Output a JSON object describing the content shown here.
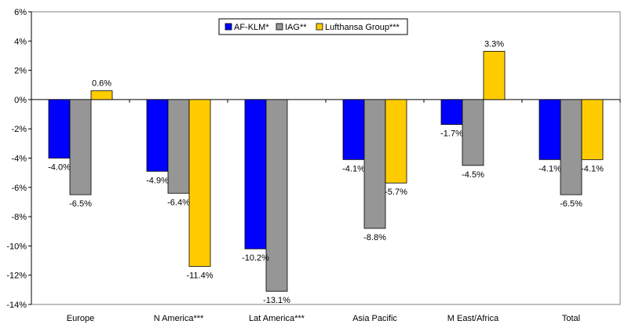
{
  "chart_data": {
    "type": "bar",
    "categories": [
      "Europe",
      "N America***",
      "Lat America***",
      "Asia Pacific",
      "M East/Africa",
      "Total"
    ],
    "series": [
      {
        "name": "AF-KLM*",
        "color": "#0000ff",
        "values": [
          -4.0,
          -4.9,
          -10.2,
          -4.1,
          -1.7,
          -4.1
        ],
        "labels": [
          "-4.0%",
          "-4.9%",
          "-10.2%",
          "-4.1%",
          "-1.7%",
          "-4.1%"
        ]
      },
      {
        "name": "IAG**",
        "color": "#969696",
        "values": [
          -6.5,
          -6.4,
          -13.1,
          -8.8,
          -4.5,
          -6.5
        ],
        "labels": [
          "-6.5%",
          "-6.4%",
          "-13.1%",
          "-8.8%",
          "-4.5%",
          "-6.5%"
        ]
      },
      {
        "name": "Lufthansa Group***",
        "color": "#ffcc00",
        "values": [
          0.6,
          -11.4,
          null,
          -5.7,
          3.3,
          -4.1
        ],
        "labels": [
          "0.6%",
          "-11.4%",
          null,
          "-5.7%",
          "3.3%",
          "-4.1%"
        ]
      }
    ],
    "ylim": [
      -14,
      6
    ],
    "ytick_values": [
      6,
      4,
      2,
      0,
      -2,
      -4,
      -6,
      -8,
      -10,
      -12,
      -14
    ],
    "ytick_labels": [
      "6%",
      "4%",
      "2%",
      "0%",
      "-2%",
      "-4%",
      "-6%",
      "-8%",
      "-10%",
      "-12%",
      "-14%"
    ],
    "grid": false,
    "legend": "top-center"
  }
}
